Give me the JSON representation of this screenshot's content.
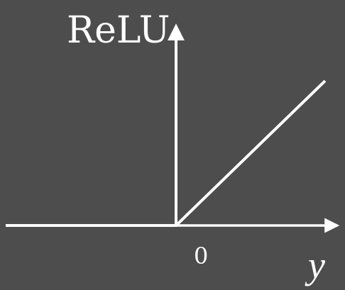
{
  "chart_data": {
    "type": "line",
    "title": "",
    "xlabel": "y",
    "ylabel": "ReLU",
    "xtick_labels": [
      "0"
    ],
    "series": [
      {
        "x": [
          -1,
          0,
          0.85
        ],
        "y": [
          0,
          0,
          0.85
        ]
      }
    ],
    "xlim": [
      -1,
      0.85
    ],
    "ylim": [
      0,
      0.85
    ],
    "grid": false,
    "legend": "none",
    "colors": {
      "background": "#4d4d4d",
      "foreground": "#ffffff"
    }
  }
}
